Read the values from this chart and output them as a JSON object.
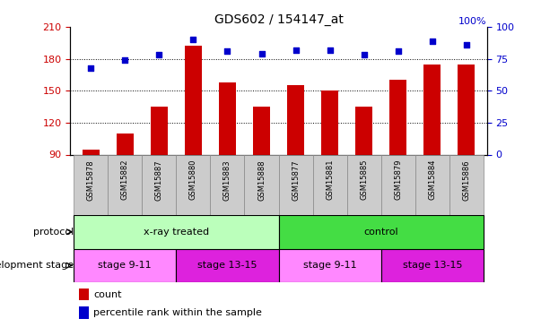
{
  "title": "GDS602 / 154147_at",
  "samples": [
    "GSM15878",
    "GSM15882",
    "GSM15887",
    "GSM15880",
    "GSM15883",
    "GSM15888",
    "GSM15877",
    "GSM15881",
    "GSM15885",
    "GSM15879",
    "GSM15884",
    "GSM15886"
  ],
  "bar_values": [
    95,
    110,
    135,
    192,
    158,
    135,
    155,
    150,
    135,
    160,
    175,
    175
  ],
  "dot_values_pct": [
    68,
    74,
    78,
    90,
    81,
    79,
    82,
    82,
    78,
    81,
    89,
    86
  ],
  "ylim_left": [
    90,
    210
  ],
  "ylim_right": [
    0,
    100
  ],
  "yticks_left": [
    90,
    120,
    150,
    180,
    210
  ],
  "yticks_right": [
    0,
    25,
    50,
    75,
    100
  ],
  "bar_color": "#CC0000",
  "dot_color": "#0000CC",
  "tick_color_left": "#CC0000",
  "tick_color_right": "#0000CC",
  "sample_cell_color": "#CCCCCC",
  "protocol_groups": [
    {
      "text": "x-ray treated",
      "start": 0,
      "end": 5,
      "color": "#BBFFBB"
    },
    {
      "text": "control",
      "start": 6,
      "end": 11,
      "color": "#44DD44"
    }
  ],
  "dev_stage_groups": [
    {
      "text": "stage 9-11",
      "start": 0,
      "end": 2,
      "color": "#FF88FF"
    },
    {
      "text": "stage 13-15",
      "start": 3,
      "end": 5,
      "color": "#DD22DD"
    },
    {
      "text": "stage 9-11",
      "start": 6,
      "end": 8,
      "color": "#FF88FF"
    },
    {
      "text": "stage 13-15",
      "start": 9,
      "end": 11,
      "color": "#DD22DD"
    }
  ],
  "protocol_label": "protocol",
  "dev_stage_label": "development stage",
  "legend_count_label": "count",
  "legend_pct_label": "percentile rank within the sample",
  "right_axis_top_label": "100%"
}
